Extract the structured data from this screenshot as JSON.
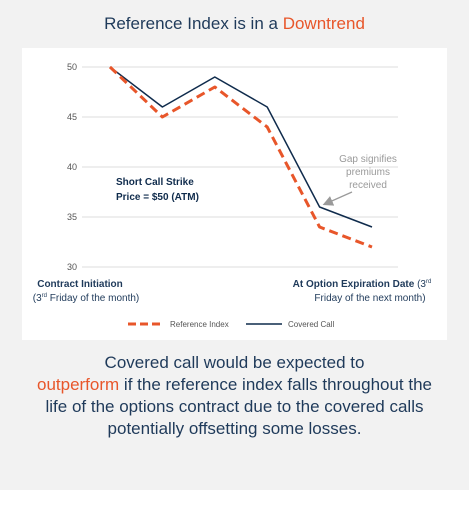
{
  "title": {
    "text": "Reference Index is in a",
    "highlight": "Downtrend"
  },
  "chart_data": {
    "type": "line",
    "categories": [
      null,
      null,
      null,
      null,
      null,
      null
    ],
    "series": [
      {
        "name": "Reference Index",
        "color": "#e8562a",
        "dashed": true,
        "values": [
          50,
          45,
          48,
          44,
          34,
          32
        ]
      },
      {
        "name": "Covered Call",
        "color": "#0f2b4c",
        "dashed": false,
        "values": [
          50,
          46,
          49,
          46,
          36,
          34
        ]
      }
    ],
    "ylim": [
      30,
      50
    ],
    "yticks": [
      30,
      35,
      40,
      45,
      50
    ],
    "grid": true,
    "legend": "bottom",
    "annotations": {
      "strike": [
        "Short Call Strike",
        "Price = $50 (ATM)"
      ],
      "gap": [
        "Gap signifies",
        "premiums",
        "received"
      ]
    },
    "x_labels": {
      "start": {
        "bold": "Contract Initiation",
        "line2": [
          "(3",
          "rd",
          " Friday of the month)"
        ]
      },
      "end": {
        "bold": "At Option Expiration Date",
        "line1": [
          " (3",
          "rd"
        ],
        "line2": "Friday of the next month)"
      }
    }
  },
  "body": {
    "before": "Covered call would be expected to",
    "highlight": "outperform",
    "after": "if the reference index falls throughout the life of the options contract due to the covered calls potentially offsetting some losses."
  }
}
